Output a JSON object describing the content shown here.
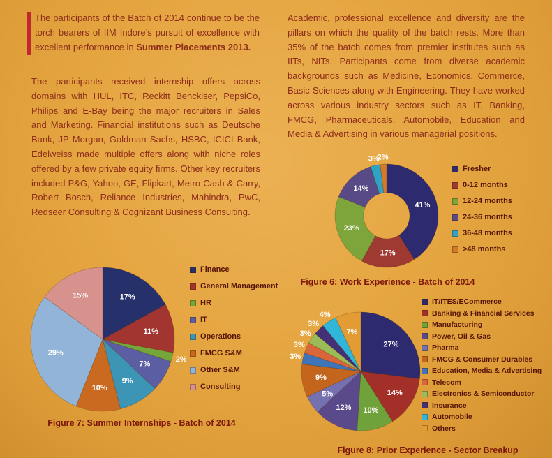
{
  "page": {
    "background_color": "#e5a642",
    "accent_bar_color": "#c1272d",
    "text_color": "#8e2d1a",
    "caption_color": "#7c150a"
  },
  "intro": {
    "text_before": "The participants of the Batch of 2014 continue to be the torch bearers of IIM Indore’s pursuit of excellence with excellent performance in ",
    "bold_text": "Summer Placements 2013."
  },
  "left_paragraph": "The participants received internship offers across domains with HUL, ITC, Reckitt Benckiser, PepsiCo, Philips and E-Bay being the major recruiters in Sales and Marketing. Financial institutions such as Deutsche Bank, JP Morgan, Goldman Sachs, HSBC, ICICI Bank, Edelweiss made multiple offers along with niche roles offered by a few private equity firms. Other key recruiters included P&G, Yahoo, GE, Flipkart, Metro Cash & Carry, Robert Bosch, Reliance Industries, Mahindra, PwC, Redseer Consulting & Cognizant Business Consulting.",
  "right_paragraph": "Academic, professional excellence and diversity are the pillars on which the quality of the batch rests. More than 35% of the batch comes from premier institutes such as IITs, NITs. Participants come from diverse academic backgrounds such as Medicine, Economics, Commerce, Basic Sciences along with Engineering. They have worked across various industry sectors such as IT, Banking, FMCG, Pharmaceuticals, Automobile, Education and Media & Advertising in various managerial positions.",
  "chart_data": [
    {
      "id": "fig6",
      "type": "pie",
      "donut": true,
      "title": "Figure 6: Work Experience - Batch of 2014",
      "categories": [
        "Fresher",
        "0-12 months",
        "12-24 months",
        "24-36 months",
        "36-48 months",
        ">48 months"
      ],
      "values": [
        41,
        17,
        23,
        14,
        3,
        2
      ],
      "colors": [
        "#2e2a70",
        "#9e3a32",
        "#7ea43c",
        "#584a87",
        "#2fa3c6",
        "#d07a2a"
      ],
      "labels": "percent",
      "legend_position": "right"
    },
    {
      "id": "fig7",
      "type": "pie",
      "donut": false,
      "title": "Figure 7: Summer Internships - Batch of 2014",
      "categories": [
        "Finance",
        "General Management",
        "HR",
        "IT",
        "Operations",
        "FMCG S&M",
        "Other S&M",
        "Consulting"
      ],
      "values": [
        17,
        11,
        2,
        7,
        9,
        10,
        29,
        15
      ],
      "colors": [
        "#26316b",
        "#a23530",
        "#74a639",
        "#5c5ea3",
        "#3d95b5",
        "#c96a20",
        "#92b4d8",
        "#d8928e"
      ],
      "labels": "percent",
      "legend_position": "right"
    },
    {
      "id": "fig8",
      "type": "pie",
      "donut": false,
      "title": "Figure 8: Prior Experience - Sector Breakup",
      "categories": [
        "IT/ITES/ECommerce",
        "Banking & Financial Services",
        "Manufacturing",
        "Power, Oil & Gas",
        "Pharma",
        "FMCG & Consumer Durables",
        "Education, Media & Advertising",
        "Telecom",
        "Electronics & Semiconductor",
        "Insurance",
        "Automobile",
        "Others"
      ],
      "values": [
        27,
        14,
        10,
        12,
        5,
        9,
        3,
        3,
        3,
        3,
        4,
        7
      ],
      "colors": [
        "#2e2a70",
        "#a23028",
        "#6fa23a",
        "#5a4a8c",
        "#7570b0",
        "#c4651d",
        "#3e74b8",
        "#d9663a",
        "#9bbb59",
        "#433076",
        "#2fb6d9",
        "#e39c33"
      ],
      "labels": "percent",
      "legend_position": "right"
    }
  ]
}
